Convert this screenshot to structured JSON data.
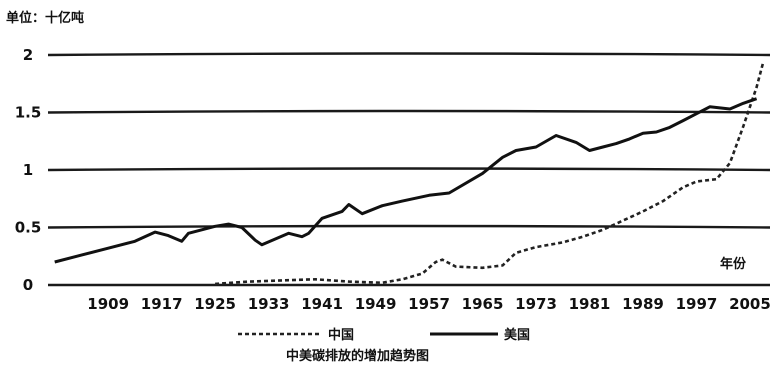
{
  "chart_data": {
    "type": "line",
    "title": "中美碳排放的增加趋势图",
    "unit_label": "单位：十亿吨",
    "xlabel": "年份",
    "ylabel": "",
    "xlim": [
      1900,
      2008
    ],
    "ylim": [
      0,
      2
    ],
    "yticks": [
      0,
      0.5,
      1,
      1.5,
      2
    ],
    "ytick_labels": [
      "0",
      "0.5",
      "1",
      "1.5",
      "2"
    ],
    "xticks": [
      1909,
      1917,
      1925,
      1933,
      1941,
      1949,
      1957,
      1965,
      1973,
      1981,
      1989,
      1997,
      2005
    ],
    "xtick_labels": [
      "1909",
      "1917",
      "1925",
      "1933",
      "1941",
      "1949",
      "1957",
      "1965",
      "1973",
      "1981",
      "1989",
      "1997",
      "2005"
    ],
    "grid": true,
    "legend_position": "bottom-center",
    "series": [
      {
        "name": "中国",
        "style": "dashed",
        "x": [
          1925,
          1930,
          1935,
          1940,
          1945,
          1950,
          1953,
          1956,
          1958,
          1959,
          1961,
          1965,
          1968,
          1970,
          1973,
          1977,
          1980,
          1983,
          1986,
          1989,
          1992,
          1995,
          1997,
          2000,
          2002,
          2004,
          2006,
          2007
        ],
        "y": [
          0.01,
          0.03,
          0.04,
          0.05,
          0.03,
          0.02,
          0.05,
          0.1,
          0.2,
          0.22,
          0.16,
          0.15,
          0.17,
          0.28,
          0.33,
          0.37,
          0.42,
          0.48,
          0.56,
          0.64,
          0.73,
          0.85,
          0.9,
          0.92,
          1.06,
          1.38,
          1.72,
          1.94
        ]
      },
      {
        "name": "美国",
        "style": "solid",
        "x": [
          1901,
          1905,
          1909,
          1913,
          1916,
          1918,
          1920,
          1921,
          1923,
          1925,
          1927,
          1929,
          1931,
          1932,
          1934,
          1936,
          1938,
          1939,
          1941,
          1944,
          1945,
          1947,
          1950,
          1953,
          1957,
          1960,
          1965,
          1968,
          1970,
          1973,
          1976,
          1979,
          1981,
          1983,
          1985,
          1987,
          1989,
          1991,
          1993,
          1995,
          1997,
          1999,
          2002,
          2004,
          2006
        ],
        "y": [
          0.2,
          0.26,
          0.32,
          0.38,
          0.46,
          0.43,
          0.38,
          0.45,
          0.48,
          0.51,
          0.53,
          0.5,
          0.39,
          0.35,
          0.4,
          0.45,
          0.42,
          0.45,
          0.58,
          0.64,
          0.7,
          0.62,
          0.69,
          0.73,
          0.78,
          0.8,
          0.97,
          1.11,
          1.17,
          1.2,
          1.3,
          1.24,
          1.17,
          1.2,
          1.23,
          1.27,
          1.32,
          1.33,
          1.37,
          1.43,
          1.49,
          1.55,
          1.53,
          1.58,
          1.62
        ]
      }
    ]
  }
}
